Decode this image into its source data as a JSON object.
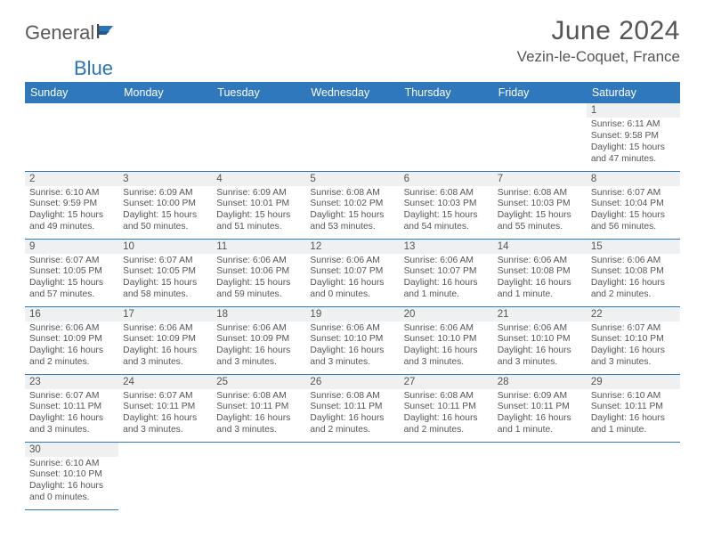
{
  "brand": {
    "part1": "General",
    "part2": "Blue"
  },
  "title": "June 2024",
  "location": "Vezin-le-Coquet, France",
  "colors": {
    "header_bg": "#2f78bd",
    "header_fg": "#ffffff",
    "daynum_bg": "#eef0f1",
    "text": "#555555",
    "rule": "#2f78bd",
    "logo_blue": "#2b74b8"
  },
  "weekdays": [
    "Sunday",
    "Monday",
    "Tuesday",
    "Wednesday",
    "Thursday",
    "Friday",
    "Saturday"
  ],
  "layout": {
    "cols": 7,
    "rows": 6,
    "first_weekday_index": 6,
    "days_in_month": 30
  },
  "days": {
    "1": {
      "sunrise": "6:11 AM",
      "sunset": "9:58 PM",
      "daylight": "15 hours and 47 minutes."
    },
    "2": {
      "sunrise": "6:10 AM",
      "sunset": "9:59 PM",
      "daylight": "15 hours and 49 minutes."
    },
    "3": {
      "sunrise": "6:09 AM",
      "sunset": "10:00 PM",
      "daylight": "15 hours and 50 minutes."
    },
    "4": {
      "sunrise": "6:09 AM",
      "sunset": "10:01 PM",
      "daylight": "15 hours and 51 minutes."
    },
    "5": {
      "sunrise": "6:08 AM",
      "sunset": "10:02 PM",
      "daylight": "15 hours and 53 minutes."
    },
    "6": {
      "sunrise": "6:08 AM",
      "sunset": "10:03 PM",
      "daylight": "15 hours and 54 minutes."
    },
    "7": {
      "sunrise": "6:08 AM",
      "sunset": "10:03 PM",
      "daylight": "15 hours and 55 minutes."
    },
    "8": {
      "sunrise": "6:07 AM",
      "sunset": "10:04 PM",
      "daylight": "15 hours and 56 minutes."
    },
    "9": {
      "sunrise": "6:07 AM",
      "sunset": "10:05 PM",
      "daylight": "15 hours and 57 minutes."
    },
    "10": {
      "sunrise": "6:07 AM",
      "sunset": "10:05 PM",
      "daylight": "15 hours and 58 minutes."
    },
    "11": {
      "sunrise": "6:06 AM",
      "sunset": "10:06 PM",
      "daylight": "15 hours and 59 minutes."
    },
    "12": {
      "sunrise": "6:06 AM",
      "sunset": "10:07 PM",
      "daylight": "16 hours and 0 minutes."
    },
    "13": {
      "sunrise": "6:06 AM",
      "sunset": "10:07 PM",
      "daylight": "16 hours and 1 minute."
    },
    "14": {
      "sunrise": "6:06 AM",
      "sunset": "10:08 PM",
      "daylight": "16 hours and 1 minute."
    },
    "15": {
      "sunrise": "6:06 AM",
      "sunset": "10:08 PM",
      "daylight": "16 hours and 2 minutes."
    },
    "16": {
      "sunrise": "6:06 AM",
      "sunset": "10:09 PM",
      "daylight": "16 hours and 2 minutes."
    },
    "17": {
      "sunrise": "6:06 AM",
      "sunset": "10:09 PM",
      "daylight": "16 hours and 3 minutes."
    },
    "18": {
      "sunrise": "6:06 AM",
      "sunset": "10:09 PM",
      "daylight": "16 hours and 3 minutes."
    },
    "19": {
      "sunrise": "6:06 AM",
      "sunset": "10:10 PM",
      "daylight": "16 hours and 3 minutes."
    },
    "20": {
      "sunrise": "6:06 AM",
      "sunset": "10:10 PM",
      "daylight": "16 hours and 3 minutes."
    },
    "21": {
      "sunrise": "6:06 AM",
      "sunset": "10:10 PM",
      "daylight": "16 hours and 3 minutes."
    },
    "22": {
      "sunrise": "6:07 AM",
      "sunset": "10:10 PM",
      "daylight": "16 hours and 3 minutes."
    },
    "23": {
      "sunrise": "6:07 AM",
      "sunset": "10:11 PM",
      "daylight": "16 hours and 3 minutes."
    },
    "24": {
      "sunrise": "6:07 AM",
      "sunset": "10:11 PM",
      "daylight": "16 hours and 3 minutes."
    },
    "25": {
      "sunrise": "6:08 AM",
      "sunset": "10:11 PM",
      "daylight": "16 hours and 3 minutes."
    },
    "26": {
      "sunrise": "6:08 AM",
      "sunset": "10:11 PM",
      "daylight": "16 hours and 2 minutes."
    },
    "27": {
      "sunrise": "6:08 AM",
      "sunset": "10:11 PM",
      "daylight": "16 hours and 2 minutes."
    },
    "28": {
      "sunrise": "6:09 AM",
      "sunset": "10:11 PM",
      "daylight": "16 hours and 1 minute."
    },
    "29": {
      "sunrise": "6:10 AM",
      "sunset": "10:11 PM",
      "daylight": "16 hours and 1 minute."
    },
    "30": {
      "sunrise": "6:10 AM",
      "sunset": "10:10 PM",
      "daylight": "16 hours and 0 minutes."
    }
  },
  "labels": {
    "sunrise": "Sunrise: ",
    "sunset": "Sunset: ",
    "daylight": "Daylight: "
  }
}
